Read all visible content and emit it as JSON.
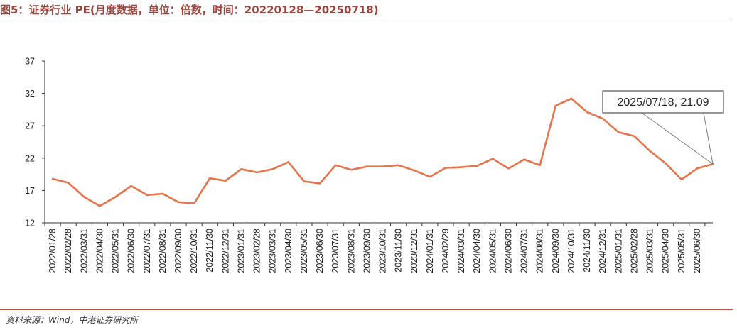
{
  "title": "图5：证券行业 PE(月度数据，单位：倍数，时间：20220128—20250718)",
  "source": "资料来源：Wind，中港证券研究所",
  "annotation": "2025/07/18, 21.09",
  "colors": {
    "line": "#e8734a",
    "title": "#a2413a",
    "rule": "#b5564c",
    "axis": "#333333"
  },
  "chart_data": {
    "type": "line",
    "ylim": [
      12,
      37
    ],
    "yticks": [
      12,
      17,
      22,
      27,
      32,
      37
    ],
    "grid": false,
    "legend": "none",
    "x": [
      "2022/01/28",
      "2022/02/28",
      "2022/03/31",
      "2022/04/30",
      "2022/05/31",
      "2022/06/30",
      "2022/07/31",
      "2022/08/31",
      "2022/09/30",
      "2022/10/31",
      "2022/11/30",
      "2022/12/31",
      "2023/01/31",
      "2023/02/28",
      "2023/03/31",
      "2023/04/30",
      "2023/05/31",
      "2023/06/30",
      "2023/07/31",
      "2023/08/31",
      "2023/09/30",
      "2023/10/31",
      "2023/11/30",
      "2023/12/31",
      "2024/01/31",
      "2024/02/29",
      "2024/03/31",
      "2024/04/30",
      "2024/05/31",
      "2024/06/30",
      "2024/07/31",
      "2024/08/31",
      "2024/09/30",
      "2024/10/31",
      "2024/11/30",
      "2024/12/31",
      "2025/01/31",
      "2025/02/28",
      "2025/03/31",
      "2025/04/30",
      "2025/05/31",
      "2025/06/30",
      "2025/07/18"
    ],
    "values": [
      18.8,
      18.2,
      16.0,
      14.6,
      16.0,
      17.7,
      16.3,
      16.5,
      15.2,
      15.0,
      18.9,
      18.5,
      20.3,
      19.8,
      20.3,
      21.4,
      18.4,
      18.1,
      20.9,
      20.2,
      20.7,
      20.7,
      20.9,
      20.1,
      19.1,
      20.5,
      20.6,
      20.8,
      21.9,
      20.4,
      21.8,
      20.9,
      30.1,
      31.2,
      29.1,
      28.1,
      26.0,
      25.4,
      23.1,
      21.2,
      18.7,
      20.4,
      21.09
    ]
  }
}
